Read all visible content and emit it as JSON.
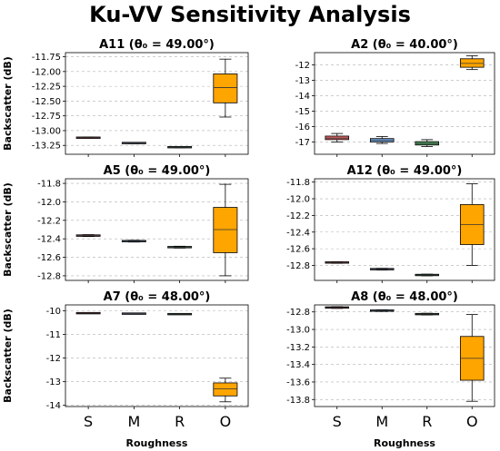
{
  "suptitle": "Ku-VV Sensitivity Analysis",
  "chart_data": [
    {
      "type": "box",
      "title": "A11 (θ₀ = 49.00°)",
      "xlabel": "",
      "ylabel": "Backscatter (dB)",
      "categories": [
        "S",
        "M",
        "R",
        "O"
      ],
      "ylim": [
        -13.4,
        -11.68
      ],
      "yticks": [
        -13.25,
        -13.0,
        -12.75,
        -12.5,
        -12.25,
        -12.0,
        -11.75
      ],
      "yticklabels": [
        "-13.25",
        "-13.00",
        "-12.75",
        "-12.50",
        "-12.25",
        "-12.00",
        "-11.75"
      ],
      "grid": "y",
      "boxes": [
        {
          "min": -13.13,
          "q1": -13.125,
          "median": -13.12,
          "q3": -13.115,
          "max": -13.11,
          "color": "#d9534f"
        },
        {
          "min": -13.22,
          "q1": -13.215,
          "median": -13.21,
          "q3": -13.205,
          "max": -13.2,
          "color": "#5b8cc6"
        },
        {
          "min": -13.29,
          "q1": -13.285,
          "median": -13.28,
          "q3": -13.275,
          "max": -13.27,
          "color": "#4e9a5e"
        },
        {
          "min": -12.77,
          "q1": -12.53,
          "median": -12.27,
          "q3": -12.04,
          "max": -11.79,
          "color": "#ffa500"
        }
      ]
    },
    {
      "type": "box",
      "title": "A2 (θ₀ = 40.00°)",
      "xlabel": "",
      "ylabel": "",
      "categories": [
        "S",
        "M",
        "R",
        "O"
      ],
      "ylim": [
        -17.8,
        -11.2
      ],
      "yticks": [
        -17,
        -16,
        -15,
        -14,
        -13,
        -12
      ],
      "yticklabels": [
        "-17",
        "-16",
        "-15",
        "-14",
        "-13",
        "-12"
      ],
      "grid": "y",
      "boxes": [
        {
          "min": -17.0,
          "q1": -16.85,
          "median": -16.75,
          "q3": -16.62,
          "max": -16.45,
          "color": "#e06666"
        },
        {
          "min": -17.1,
          "q1": -17.0,
          "median": -16.9,
          "q3": -16.78,
          "max": -16.65,
          "color": "#6d9ed8"
        },
        {
          "min": -17.3,
          "q1": -17.2,
          "median": -17.1,
          "q3": -16.98,
          "max": -16.85,
          "color": "#4e9a5e"
        },
        {
          "min": -12.3,
          "q1": -12.15,
          "median": -11.9,
          "q3": -11.6,
          "max": -11.4,
          "color": "#ffa500"
        }
      ]
    },
    {
      "type": "box",
      "title": "A5 (θ₀ = 49.00°)",
      "xlabel": "",
      "ylabel": "Backscatter (dB)",
      "categories": [
        "S",
        "M",
        "R",
        "O"
      ],
      "ylim": [
        -12.85,
        -11.75
      ],
      "yticks": [
        -12.8,
        -12.6,
        -12.4,
        -12.2,
        -12.0,
        -11.8
      ],
      "yticklabels": [
        "-12.8",
        "-12.6",
        "-12.4",
        "-12.2",
        "-12.0",
        "-11.8"
      ],
      "grid": "y",
      "boxes": [
        {
          "min": -12.375,
          "q1": -12.37,
          "median": -12.365,
          "q3": -12.36,
          "max": -12.355,
          "color": "#d9534f"
        },
        {
          "min": -12.435,
          "q1": -12.43,
          "median": -12.425,
          "q3": -12.42,
          "max": -12.415,
          "color": "#5b8cc6"
        },
        {
          "min": -12.5,
          "q1": -12.495,
          "median": -12.49,
          "q3": -12.485,
          "max": -12.48,
          "color": "#4e9a5e"
        },
        {
          "min": -12.8,
          "q1": -12.55,
          "median": -12.3,
          "q3": -12.06,
          "max": -11.81,
          "color": "#ffa500"
        }
      ]
    },
    {
      "type": "box",
      "title": "A12 (θ₀ = 49.00°)",
      "xlabel": "",
      "ylabel": "",
      "categories": [
        "S",
        "M",
        "R",
        "O"
      ],
      "ylim": [
        -12.98,
        -11.76
      ],
      "yticks": [
        -12.8,
        -12.6,
        -12.4,
        -12.2,
        -12.0,
        -11.8
      ],
      "yticklabels": [
        "-12.8",
        "-12.6",
        "-12.4",
        "-12.2",
        "-12.0",
        "-11.8"
      ],
      "grid": "y",
      "boxes": [
        {
          "min": -12.775,
          "q1": -12.77,
          "median": -12.765,
          "q3": -12.76,
          "max": -12.755,
          "color": "#d9534f"
        },
        {
          "min": -12.855,
          "q1": -12.85,
          "median": -12.845,
          "q3": -12.84,
          "max": -12.835,
          "color": "#5b8cc6"
        },
        {
          "min": -12.925,
          "q1": -12.92,
          "median": -12.915,
          "q3": -12.91,
          "max": -12.905,
          "color": "#4e9a5e"
        },
        {
          "min": -12.8,
          "q1": -12.55,
          "median": -12.31,
          "q3": -12.07,
          "max": -11.82,
          "color": "#ffa500"
        }
      ]
    },
    {
      "type": "box",
      "title": "A7 (θ₀ = 48.00°)",
      "xlabel": "Roughness",
      "ylabel": "Backscatter (dB)",
      "categories": [
        "S",
        "M",
        "R",
        "O"
      ],
      "ylim": [
        -14.05,
        -9.75
      ],
      "yticks": [
        -14,
        -13,
        -12,
        -11,
        -10
      ],
      "yticklabels": [
        "-14",
        "-13",
        "-12",
        "-11",
        "-10"
      ],
      "grid": "y",
      "boxes": [
        {
          "min": -10.11,
          "q1": -10.105,
          "median": -10.1,
          "q3": -10.095,
          "max": -10.09,
          "color": "#d9534f"
        },
        {
          "min": -10.13,
          "q1": -10.125,
          "median": -10.12,
          "q3": -10.115,
          "max": -10.11,
          "color": "#5b8cc6"
        },
        {
          "min": -10.15,
          "q1": -10.145,
          "median": -10.14,
          "q3": -10.135,
          "max": -10.13,
          "color": "#4e9a5e"
        },
        {
          "min": -13.85,
          "q1": -13.6,
          "median": -13.3,
          "q3": -13.05,
          "max": -12.85,
          "color": "#ffa500"
        }
      ]
    },
    {
      "type": "box",
      "title": "A8 (θ₀ = 48.00°)",
      "xlabel": "Roughness",
      "ylabel": "",
      "categories": [
        "S",
        "M",
        "R",
        "O"
      ],
      "ylim": [
        -13.88,
        -12.72
      ],
      "yticks": [
        -13.8,
        -13.6,
        -13.4,
        -13.2,
        -13.0,
        -12.8
      ],
      "yticklabels": [
        "-13.8",
        "-13.6",
        "-13.4",
        "-13.2",
        "-13.0",
        "-12.8"
      ],
      "grid": "y",
      "boxes": [
        {
          "min": -12.76,
          "q1": -12.755,
          "median": -12.75,
          "q3": -12.745,
          "max": -12.74,
          "color": "#d9534f"
        },
        {
          "min": -12.795,
          "q1": -12.79,
          "median": -12.785,
          "q3": -12.78,
          "max": -12.775,
          "color": "#5b8cc6"
        },
        {
          "min": -12.835,
          "q1": -12.83,
          "median": -12.825,
          "q3": -12.82,
          "max": -12.815,
          "color": "#4e9a5e"
        },
        {
          "min": -13.82,
          "q1": -13.58,
          "median": -13.33,
          "q3": -13.08,
          "max": -12.83,
          "color": "#ffa500"
        }
      ]
    }
  ]
}
